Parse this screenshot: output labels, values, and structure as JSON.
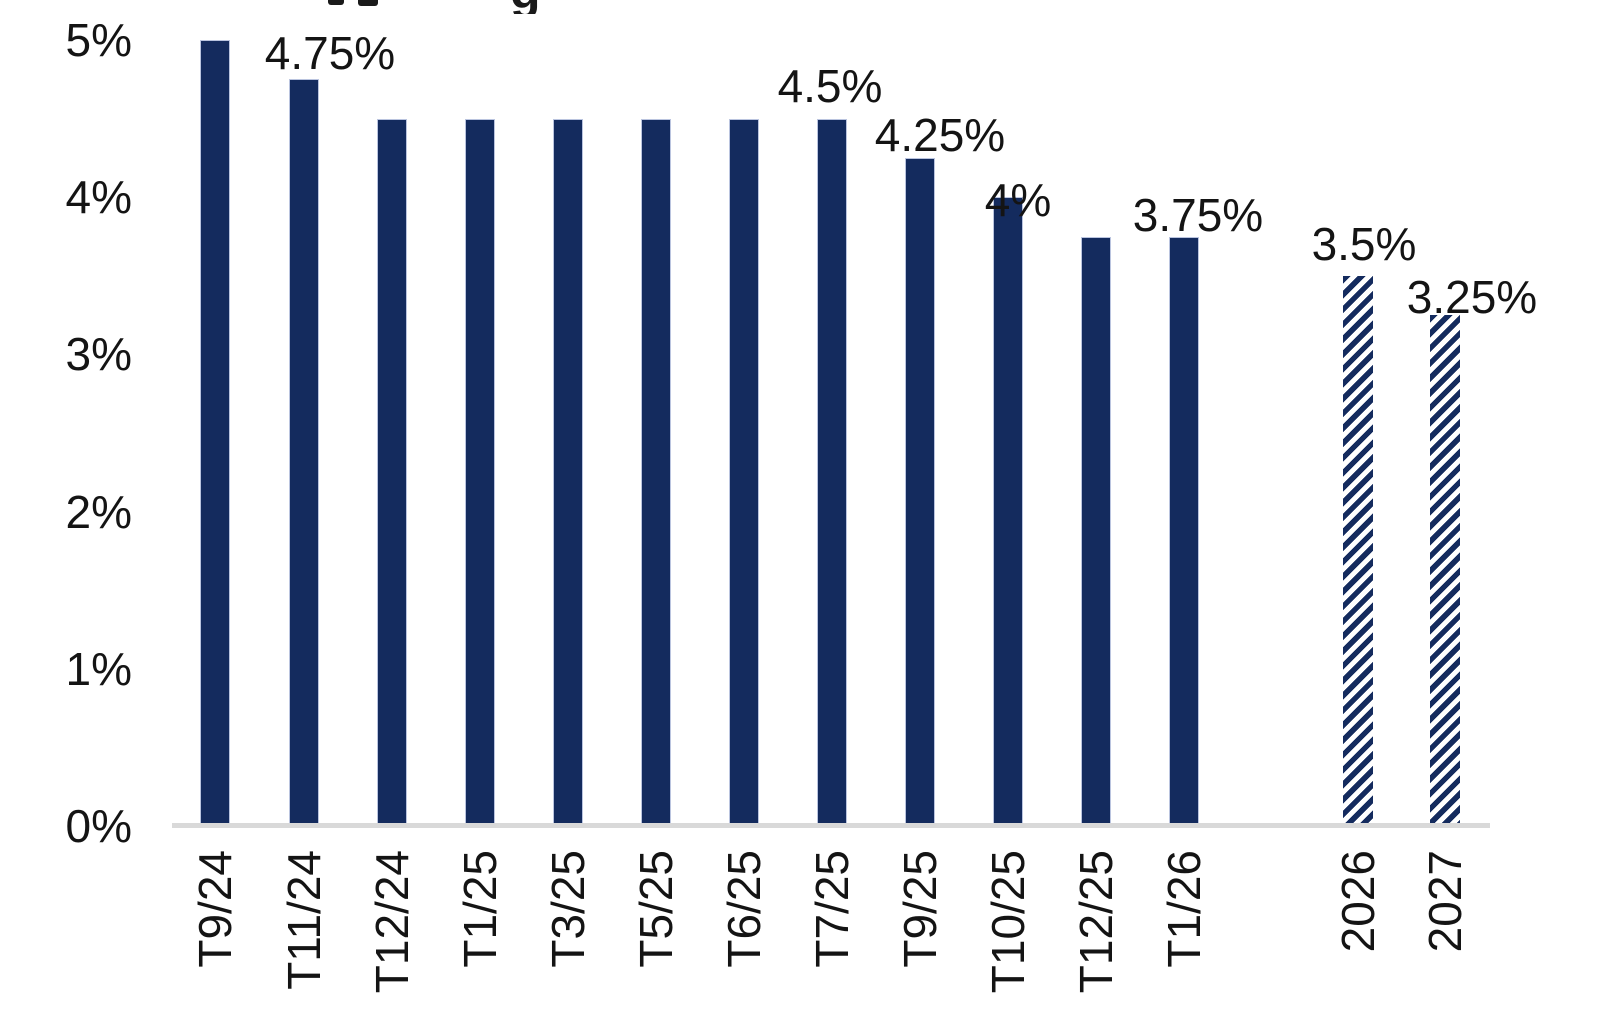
{
  "title_fragment": {
    "clipped_text": "g"
  },
  "chart_data": {
    "type": "bar",
    "title": "",
    "title_visible_fragment": "g",
    "xlabel": "",
    "ylabel": "",
    "categories": [
      "T9/24",
      "T11/24",
      "T12/24",
      "T1/25",
      "T3/25",
      "T5/25",
      "T6/25",
      "T7/25",
      "T9/25",
      "T10/25",
      "T12/25",
      "T1/26",
      "2026",
      "2027"
    ],
    "values": [
      5,
      4.75,
      4.5,
      4.5,
      4.5,
      4.5,
      4.5,
      4.5,
      4.25,
      4,
      3.75,
      3.75,
      3.5,
      3.25
    ],
    "bar_labels": [
      null,
      "4.75%",
      null,
      null,
      null,
      null,
      null,
      "4.5%",
      "4.25%",
      "4%",
      null,
      "3.75%",
      "3.5%",
      "3.25%"
    ],
    "forecast_flags": [
      false,
      false,
      false,
      false,
      false,
      false,
      false,
      false,
      false,
      false,
      false,
      false,
      true,
      true
    ],
    "forecast_style": "diagonal-hatch",
    "y_axis": {
      "ticks": [
        "5%",
        "4%",
        "3%",
        "2%",
        "1%",
        "0%"
      ],
      "tick_values": [
        5,
        4,
        3,
        2,
        1,
        0
      ],
      "range": [
        0,
        5
      ]
    },
    "grid": "off",
    "legend": "none",
    "colors": {
      "bar": "#142B5E",
      "bar_edge": "#BAC4DF",
      "axis_line": "#D9D9D9",
      "label_text": "#141414"
    }
  }
}
